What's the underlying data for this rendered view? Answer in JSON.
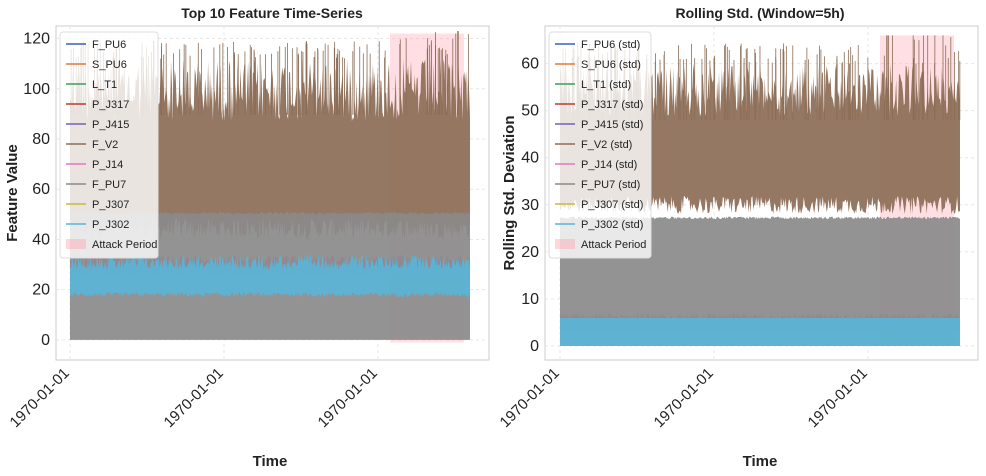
{
  "chart_data": [
    {
      "type": "line",
      "title": "Top 10 Feature Time-Series",
      "xlabel": "Time",
      "ylabel": "Feature Value",
      "ylim": [
        -8,
        125
      ],
      "yticks": [
        0,
        20,
        40,
        60,
        80,
        100,
        120
      ],
      "xtick_labels": [
        "1970-01-01",
        "1970-01-01",
        "1970-01-01"
      ],
      "grid": true,
      "legend_position": "top-left",
      "attack_period": {
        "label": "Attack Period",
        "start": 0.8,
        "end": 0.985,
        "y": [
          -1,
          122
        ],
        "color": "#ff9aa8"
      },
      "series": [
        {
          "name": "F_PU6",
          "color": "#3b5fc0",
          "min": 0,
          "max": 0
        },
        {
          "name": "S_PU6",
          "color": "#e07b39",
          "min": 0,
          "max": 0
        },
        {
          "name": "L_T1",
          "color": "#3a9e5f",
          "min": 0,
          "max": 0
        },
        {
          "name": "P_J317",
          "color": "#c0392b",
          "min": 0,
          "max": 0
        },
        {
          "name": "P_J415",
          "color": "#7460b0",
          "min": 0,
          "max": 0
        },
        {
          "name": "F_V2",
          "color": "#8c6d56",
          "min": 40,
          "max": 112
        },
        {
          "name": "P_J14",
          "color": "#e377c2",
          "min": 24,
          "max": 34
        },
        {
          "name": "F_PU7",
          "color": "#8a8a8a",
          "min": 0,
          "max": 51
        },
        {
          "name": "P_J307",
          "color": "#c9b93a",
          "min": 0,
          "max": 0
        },
        {
          "name": "P_J302",
          "color": "#5ab4d6",
          "min": 17,
          "max": 34
        }
      ]
    },
    {
      "type": "line",
      "title": "Rolling Std. (Window=5h)",
      "xlabel": "Time",
      "ylabel": "Rolling Std. Deviation",
      "ylim": [
        -3,
        68
      ],
      "yticks": [
        0,
        10,
        20,
        30,
        40,
        50,
        60
      ],
      "xtick_labels": [
        "1970-01-01",
        "1970-01-01",
        "1970-01-01"
      ],
      "grid": true,
      "legend_position": "top-left",
      "attack_period": {
        "label": "Attack Period",
        "start": 0.8,
        "end": 0.985,
        "y": [
          0,
          66
        ],
        "color": "#ff9aa8"
      },
      "series": [
        {
          "name": "F_PU6 (std)",
          "color": "#3b5fc0",
          "min": 0,
          "max": 0
        },
        {
          "name": "S_PU6 (std)",
          "color": "#e07b39",
          "min": 0,
          "max": 0
        },
        {
          "name": "L_T1 (std)",
          "color": "#3a9e5f",
          "min": 0,
          "max": 0
        },
        {
          "name": "P_J317 (std)",
          "color": "#c0392b",
          "min": 0,
          "max": 0
        },
        {
          "name": "P_J415 (std)",
          "color": "#7460b0",
          "min": 0,
          "max": 0
        },
        {
          "name": "F_V2 (std)",
          "color": "#8c6d56",
          "min": 28,
          "max": 60
        },
        {
          "name": "P_J14 (std)",
          "color": "#e377c2",
          "min": 3,
          "max": 7
        },
        {
          "name": "F_PU7 (std)",
          "color": "#8a8a8a",
          "min": 0,
          "max": 27.5
        },
        {
          "name": "P_J307 (std)",
          "color": "#c9b93a",
          "min": 0,
          "max": 0
        },
        {
          "name": "P_J302 (std)",
          "color": "#5ab4d6",
          "min": 0,
          "max": 6
        }
      ]
    }
  ]
}
